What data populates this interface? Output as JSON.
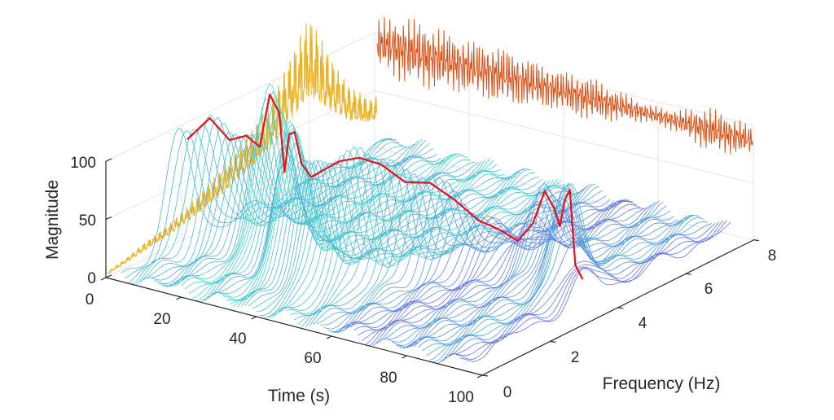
{
  "chart_data": {
    "type": "waterfall-3d",
    "title": "",
    "xlabel": "Time (s)",
    "ylabel": "Frequency (Hz)",
    "zlabel": "Magnitude",
    "x_ticks": [
      0,
      20,
      40,
      60,
      80,
      100
    ],
    "y_ticks": [
      0,
      2,
      4,
      6,
      8
    ],
    "z_ticks": [
      0,
      50,
      100
    ],
    "xlim": [
      0,
      100
    ],
    "ylim": [
      0,
      8
    ],
    "zlim": [
      0,
      100
    ],
    "grid": true,
    "colors": {
      "spectra_low": "#6a5cf0",
      "spectra_high": "#3fd6c8",
      "ridge": "#e8101a",
      "time_signal": "#d9531a",
      "frequency_projection": "#edb120",
      "axis": "#262626",
      "grid": "#e6e6e6"
    },
    "series": [
      {
        "kind": "ridge-peak-magnitude",
        "x": [
          5,
          8,
          11,
          14,
          17,
          20,
          24,
          27,
          30,
          33,
          36,
          39,
          42,
          45,
          48,
          51,
          54,
          57,
          60,
          63,
          66,
          69,
          72,
          75,
          78,
          81,
          84,
          87,
          90,
          93
        ],
        "y": [
          96,
          112,
          92,
          96,
          88,
          136,
          126,
          80,
          118,
          125,
          102,
          94,
          102,
          110,
          112,
          104,
          86,
          82,
          64,
          44,
          34,
          24,
          40,
          70,
          60,
          48,
          76,
          90,
          30,
          22
        ]
      },
      {
        "kind": "time-signal-envelope",
        "x": [
          0,
          8,
          16,
          24,
          32,
          40,
          48,
          56,
          64,
          72,
          80,
          88,
          96,
          100
        ],
        "y": [
          22,
          30,
          28,
          24,
          26,
          22,
          18,
          20,
          14,
          8,
          10,
          20,
          16,
          12
        ]
      },
      {
        "kind": "frequency-projection-envelope",
        "x": [
          0,
          0.6,
          1.2,
          1.8,
          2.4,
          3.0,
          3.6,
          4.2,
          4.8,
          5.4,
          6.0,
          6.6,
          7.2,
          7.8
        ],
        "y": [
          4,
          8,
          14,
          18,
          26,
          36,
          48,
          62,
          78,
          110,
          138,
          96,
          60,
          40
        ]
      }
    ]
  }
}
